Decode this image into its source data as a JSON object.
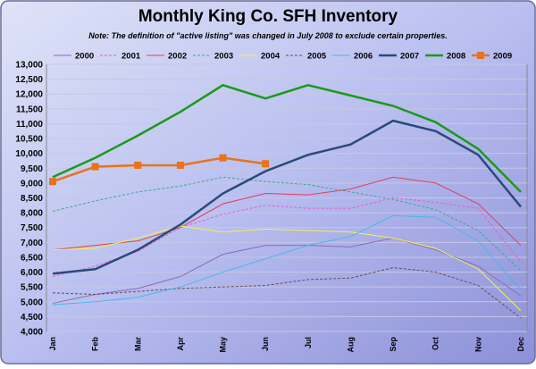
{
  "chart_data": {
    "type": "line",
    "title": "Monthly King Co. SFH Inventory",
    "subtitle": "Note: The definition of \"active listing\" was changed in July 2008 to exclude certain properties.",
    "categories": [
      "Jan",
      "Feb",
      "Mar",
      "Apr",
      "May",
      "Jun",
      "Jul",
      "Aug",
      "Sep",
      "Oct",
      "Nov",
      "Dec"
    ],
    "ylim": [
      4000,
      13000
    ],
    "yticks": [
      {
        "value": 4000,
        "label": "4,000"
      },
      {
        "value": 4500,
        "label": "4,500"
      },
      {
        "value": 5000,
        "label": "5,000"
      },
      {
        "value": 5500,
        "label": "5,500"
      },
      {
        "value": 6000,
        "label": "6,000"
      },
      {
        "value": 6500,
        "label": "6,500"
      },
      {
        "value": 7000,
        "label": "7,000"
      },
      {
        "value": 7500,
        "label": "7,500"
      },
      {
        "value": 8000,
        "label": "8,000"
      },
      {
        "value": 8500,
        "label": "8,500"
      },
      {
        "value": 9000,
        "label": "9,000"
      },
      {
        "value": 9500,
        "label": "9,500"
      },
      {
        "value": 10000,
        "label": "10,000"
      },
      {
        "value": 10500,
        "label": "10,500"
      },
      {
        "value": 11000,
        "label": "11,000"
      },
      {
        "value": 11500,
        "label": "11,500"
      },
      {
        "value": 12000,
        "label": "12,000"
      },
      {
        "value": 12500,
        "label": "12,500"
      },
      {
        "value": 13000,
        "label": "13,000"
      }
    ],
    "grid": true,
    "series": [
      {
        "name": "2000",
        "color": "#8e6bb8",
        "line_width": 1,
        "dashed": false,
        "values": [
          4950,
          5250,
          5450,
          5850,
          6600,
          6900,
          6900,
          6850,
          7150,
          6750,
          6200,
          5200
        ]
      },
      {
        "name": "2001",
        "color": "#e85cc8",
        "line_width": 1,
        "dashed": true,
        "values": [
          5850,
          6200,
          6700,
          7500,
          7950,
          8250,
          8150,
          8150,
          8500,
          8350,
          8150,
          6350
        ]
      },
      {
        "name": "2002",
        "color": "#e0405a",
        "line_width": 1,
        "dashed": false,
        "values": [
          6750,
          6900,
          7050,
          7500,
          8300,
          8650,
          8600,
          8800,
          9200,
          9000,
          8300,
          6900
        ]
      },
      {
        "name": "2003",
        "color": "#3aa89a",
        "line_width": 1,
        "dashed": true,
        "values": [
          8050,
          8400,
          8700,
          8900,
          9200,
          9050,
          8950,
          8700,
          8450,
          8100,
          7400,
          6050
        ]
      },
      {
        "name": "2004",
        "color": "#f2f24a",
        "line_width": 1,
        "dashed": false,
        "values": [
          6750,
          6800,
          7150,
          7550,
          7350,
          7450,
          7400,
          7350,
          7150,
          6800,
          6100,
          4700
        ]
      },
      {
        "name": "2005",
        "color": "#6a4a4a",
        "line_width": 1,
        "dashed": true,
        "values": [
          5300,
          5250,
          5350,
          5450,
          5500,
          5550,
          5750,
          5800,
          6150,
          6000,
          5550,
          4450
        ]
      },
      {
        "name": "2006",
        "color": "#4ab8e8",
        "line_width": 1,
        "dashed": false,
        "values": [
          4900,
          5000,
          5150,
          5500,
          6000,
          6450,
          6900,
          7200,
          7900,
          7850,
          7050,
          5400
        ]
      },
      {
        "name": "2007",
        "color": "#2a4a7a",
        "line_width": 2.5,
        "dashed": false,
        "values": [
          5950,
          6100,
          6750,
          7600,
          8650,
          9400,
          9950,
          10300,
          11100,
          10750,
          9950,
          8200
        ]
      },
      {
        "name": "2008",
        "color": "#1a9a1a",
        "line_width": 2.5,
        "dashed": false,
        "values": [
          9200,
          9850,
          10600,
          11400,
          12300,
          11850,
          12300,
          11950,
          11600,
          11050,
          10150,
          8700
        ]
      },
      {
        "name": "2009",
        "color": "#e8731a",
        "line_width": 2.5,
        "dashed": false,
        "marker": "square",
        "values": [
          9050,
          9550,
          9600,
          9600,
          9850,
          9650,
          null,
          null,
          null,
          null,
          null,
          null
        ]
      }
    ]
  }
}
